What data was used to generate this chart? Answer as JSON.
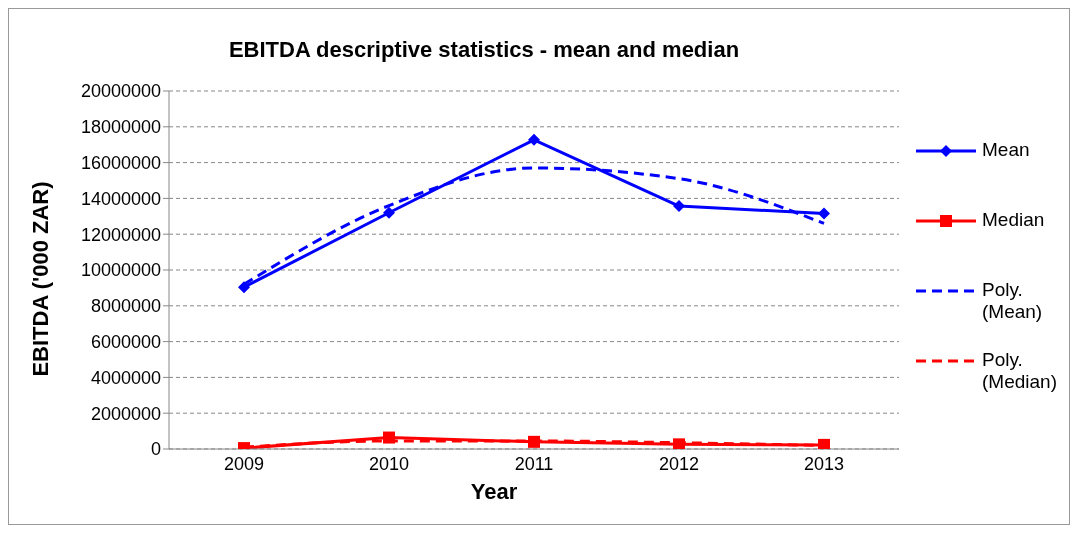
{
  "chart_data": {
    "type": "line",
    "title": "EBITDA descriptive statistics - mean and median",
    "xlabel": "Year",
    "ylabel": "EBITDA ('000 ZAR)",
    "categories": [
      "2009",
      "2010",
      "2011",
      "2012",
      "2013"
    ],
    "series": [
      {
        "name": "Mean",
        "color": "#0000ff",
        "marker": "diamond",
        "values": [
          9040000,
          13200000,
          17270000,
          13570000,
          13160000
        ]
      },
      {
        "name": "Median",
        "color": "#ff0000",
        "marker": "square",
        "values": [
          50000,
          640000,
          400000,
          260000,
          230000
        ]
      },
      {
        "name": "Poly. (Mean)",
        "color": "#0000ff",
        "marker": "none",
        "line_style": "dashed",
        "values": [
          9200000,
          13600000,
          15700000,
          15100000,
          12600000
        ]
      },
      {
        "name": "Poly. (Median)",
        "color": "#ff0000",
        "marker": "none",
        "line_style": "dashed",
        "values": [
          100000,
          450000,
          450000,
          350000,
          200000
        ]
      }
    ],
    "ylim": [
      0,
      20000000
    ],
    "yticks": [
      0,
      2000000,
      4000000,
      6000000,
      8000000,
      10000000,
      12000000,
      14000000,
      16000000,
      18000000,
      20000000
    ],
    "grid": "y",
    "legend": "right"
  }
}
